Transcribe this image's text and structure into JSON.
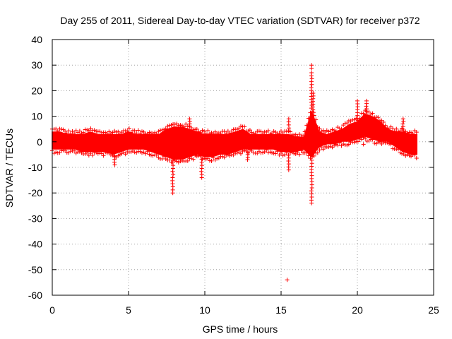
{
  "chart_data": {
    "type": "scatter",
    "title": "Day 255 of 2011, Sidereal Day-to-day VTEC variation (SDTVAR) for receiver p372",
    "xlabel": "GPS time / hours",
    "ylabel": "SDTVAR / TECUs",
    "xlim": [
      0,
      25
    ],
    "ylim": [
      -60,
      40
    ],
    "x_ticks": [
      0,
      5,
      10,
      15,
      20,
      25
    ],
    "y_ticks": [
      -60,
      -50,
      -40,
      -30,
      -20,
      -10,
      0,
      10,
      20,
      30,
      40
    ],
    "grid": true,
    "marker": "+",
    "series": [
      {
        "name": "SDTVAR",
        "color": "#ff0000",
        "band": [
          [
            0.0,
            -3,
            4
          ],
          [
            0.5,
            -3,
            4
          ],
          [
            1.0,
            -3,
            3
          ],
          [
            1.5,
            -3,
            3
          ],
          [
            2.0,
            -4,
            3
          ],
          [
            2.5,
            -4,
            4
          ],
          [
            3.0,
            -4,
            3
          ],
          [
            3.5,
            -4,
            3
          ],
          [
            4.0,
            -5,
            3
          ],
          [
            4.5,
            -4,
            3
          ],
          [
            5.0,
            -3,
            4
          ],
          [
            5.5,
            -3,
            3
          ],
          [
            6.0,
            -3,
            3
          ],
          [
            6.5,
            -4,
            3
          ],
          [
            7.0,
            -5,
            3
          ],
          [
            7.5,
            -6,
            5
          ],
          [
            8.0,
            -7,
            6
          ],
          [
            8.5,
            -7,
            6
          ],
          [
            9.0,
            -6,
            5
          ],
          [
            9.5,
            -5,
            4
          ],
          [
            10.0,
            -6,
            3
          ],
          [
            10.5,
            -6,
            3
          ],
          [
            11.0,
            -5,
            3
          ],
          [
            11.5,
            -5,
            3
          ],
          [
            12.0,
            -4,
            4
          ],
          [
            12.5,
            -3,
            5
          ],
          [
            13.0,
            -3,
            3
          ],
          [
            13.5,
            -3,
            3
          ],
          [
            14.0,
            -3,
            3
          ],
          [
            14.5,
            -3,
            3
          ],
          [
            15.0,
            -4,
            3
          ],
          [
            15.5,
            -4,
            3
          ],
          [
            16.0,
            -4,
            2
          ],
          [
            16.5,
            -3,
            2
          ],
          [
            17.0,
            -6,
            12
          ],
          [
            17.5,
            -2,
            4
          ],
          [
            18.0,
            -1,
            3
          ],
          [
            18.5,
            -1,
            4
          ],
          [
            19.0,
            0,
            5
          ],
          [
            19.5,
            0,
            7
          ],
          [
            20.0,
            1,
            8
          ],
          [
            20.5,
            2,
            11
          ],
          [
            21.0,
            1,
            10
          ],
          [
            21.5,
            0,
            8
          ],
          [
            22.0,
            0,
            5
          ],
          [
            22.5,
            -2,
            4
          ],
          [
            23.0,
            -4,
            4
          ],
          [
            23.5,
            -5,
            3
          ],
          [
            23.9,
            -5,
            3
          ]
        ],
        "spikes": [
          [
            4.1,
            -9
          ],
          [
            7.9,
            -20
          ],
          [
            9.8,
            -14
          ],
          [
            12.8,
            -7
          ],
          [
            15.4,
            -54
          ],
          [
            15.5,
            -11
          ],
          [
            15.5,
            9
          ],
          [
            17.0,
            -24
          ],
          [
            17.0,
            30
          ],
          [
            17.0,
            27
          ],
          [
            17.1,
            19
          ],
          [
            20.0,
            16
          ],
          [
            20.6,
            16
          ],
          [
            20.4,
            -1
          ],
          [
            23.0,
            9
          ],
          [
            9.0,
            9
          ]
        ]
      }
    ]
  }
}
